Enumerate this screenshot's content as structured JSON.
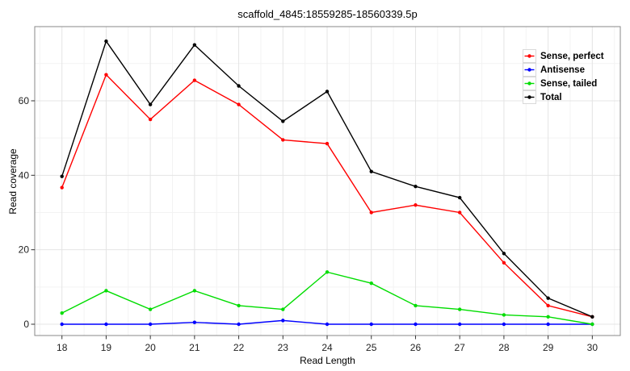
{
  "chart_data": {
    "type": "line",
    "title": "scaffold_4845:18559285-18560339.5p",
    "xlabel": "Read Length",
    "ylabel": "Read coverage",
    "x": [
      18,
      19,
      20,
      21,
      22,
      23,
      24,
      25,
      26,
      27,
      28,
      29,
      30
    ],
    "xticks": [
      18,
      19,
      20,
      21,
      22,
      23,
      24,
      25,
      26,
      27,
      28,
      29,
      30
    ],
    "yticks": [
      0,
      20,
      40,
      60
    ],
    "yticks_minor": [
      10,
      30,
      50,
      70
    ],
    "xlim": [
      17.4,
      30.6
    ],
    "ylim": [
      -3,
      80
    ],
    "grid": "major-and-minor",
    "legend_position": "top-right-inside",
    "panel_background": "#ffffff",
    "grid_major_color": "#e4e4e4",
    "grid_minor_color": "#f3f3f3",
    "panel_border_color": "#888888",
    "axis_text_color": "#222222",
    "series": [
      {
        "name": "Sense, perfect",
        "color": "#ff0000",
        "values": [
          36.7,
          67,
          55,
          65.5,
          59,
          49.5,
          48.5,
          30,
          32,
          30,
          16.5,
          5,
          2
        ]
      },
      {
        "name": "Antisense",
        "color": "#0000ff",
        "values": [
          0,
          0,
          0,
          0.5,
          0,
          1,
          0,
          0,
          0,
          0,
          0,
          0,
          0
        ]
      },
      {
        "name": "Sense, tailed",
        "color": "#00dd00",
        "values": [
          3,
          9,
          4,
          9,
          5,
          4,
          14,
          11,
          5,
          4,
          2.5,
          2,
          0
        ]
      },
      {
        "name": "Total",
        "color": "#000000",
        "values": [
          39.7,
          76,
          59,
          75,
          64,
          54.5,
          62.5,
          41,
          37,
          34,
          19,
          7,
          2
        ]
      }
    ]
  }
}
